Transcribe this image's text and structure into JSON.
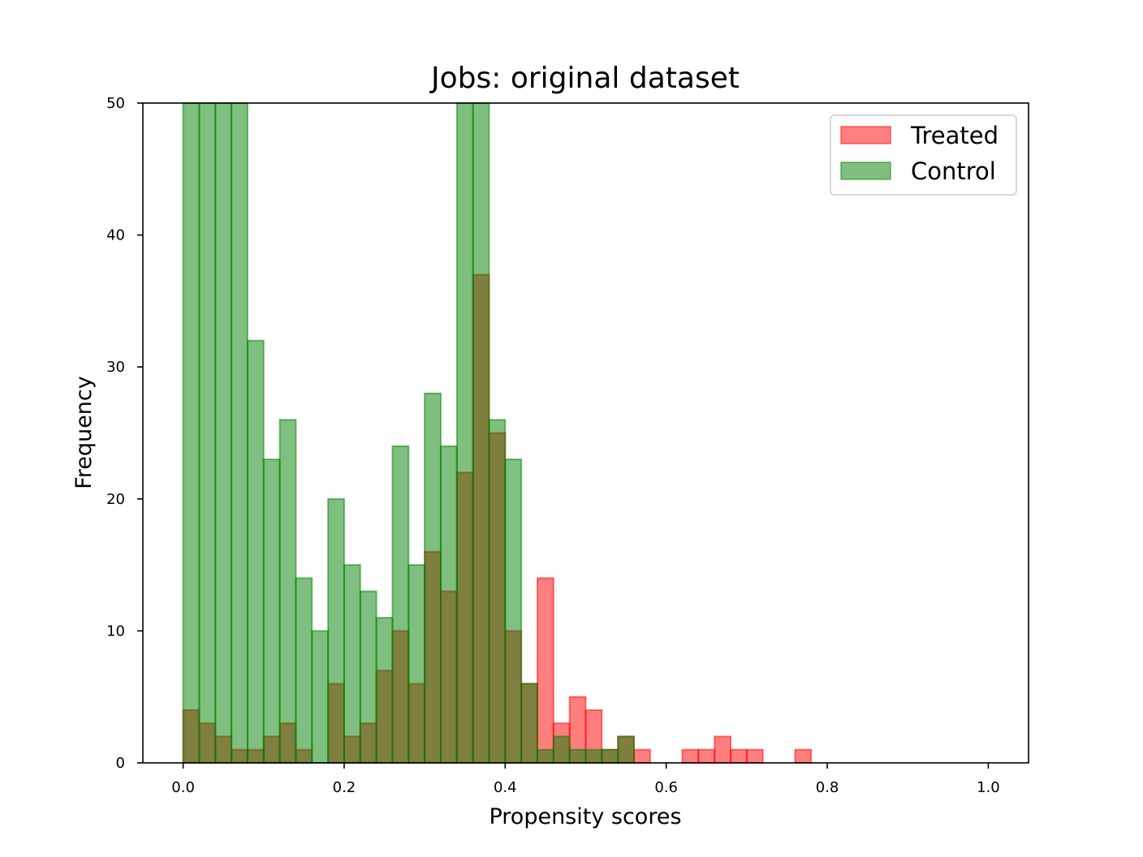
{
  "chart_data": {
    "type": "bar",
    "subtype": "overlaid-histogram",
    "title": "Jobs: original dataset",
    "xlabel": "Propensity scores",
    "ylabel": "Frequency",
    "xlim": [
      -0.05,
      1.05
    ],
    "ylim": [
      0,
      50
    ],
    "xticks": [
      "0.0",
      "0.2",
      "0.4",
      "0.6",
      "0.8",
      "1.0"
    ],
    "xtick_values": [
      0.0,
      0.2,
      0.4,
      0.6,
      0.8,
      1.0
    ],
    "yticks": [
      "0",
      "10",
      "20",
      "30",
      "40",
      "50"
    ],
    "ytick_values": [
      0,
      10,
      20,
      30,
      40,
      50
    ],
    "grid": false,
    "legend_position": "top-right",
    "bin_start": 0.0,
    "bin_width": 0.02,
    "series": [
      {
        "name": "Treated",
        "fill": "#ff0000",
        "edge": "#ff0000",
        "values": [
          4,
          3,
          2,
          1,
          1,
          2,
          3,
          1,
          0,
          6,
          2,
          3,
          7,
          10,
          6,
          16,
          13,
          22,
          37,
          25,
          10,
          6,
          14,
          3,
          5,
          4,
          1,
          2,
          1,
          0,
          0,
          1,
          1,
          2,
          1,
          1,
          0,
          0,
          1,
          0,
          0,
          0,
          0,
          0,
          0,
          0,
          0,
          0,
          0,
          0
        ]
      },
      {
        "name": "Control",
        "fill": "#008000",
        "edge": "#008000",
        "values": [
          50,
          50,
          50,
          50,
          32,
          23,
          26,
          14,
          10,
          20,
          15,
          13,
          11,
          24,
          15,
          28,
          24,
          50,
          50,
          26,
          23,
          6,
          1,
          2,
          1,
          1,
          1,
          2,
          0,
          0,
          0,
          0,
          0,
          0,
          0,
          0,
          0,
          0,
          0,
          0,
          0,
          0,
          0,
          0,
          0,
          0,
          0,
          0,
          0,
          0
        ]
      }
    ]
  }
}
